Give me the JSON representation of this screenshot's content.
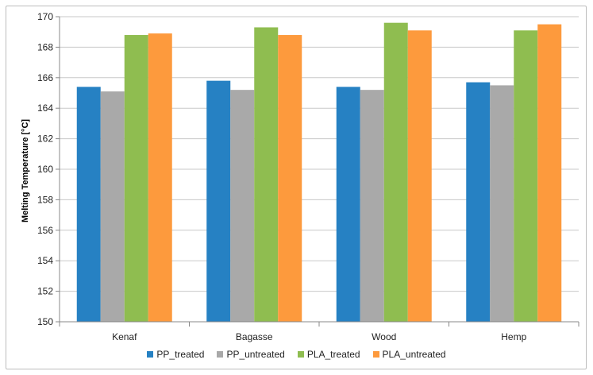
{
  "chart_data": {
    "type": "bar",
    "title": "",
    "xlabel": "",
    "ylabel": "Melting Temperature [°C]",
    "ylim": [
      150,
      170
    ],
    "yticks": [
      150,
      152,
      154,
      156,
      158,
      160,
      162,
      164,
      166,
      168,
      170
    ],
    "grid": true,
    "legend": "bottom",
    "categories": [
      "Kenaf",
      "Bagasse",
      "Wood",
      "Hemp"
    ],
    "series": [
      {
        "name": "PP_treated",
        "color": "#2681c3",
        "values": [
          165.4,
          165.8,
          165.4,
          165.7
        ]
      },
      {
        "name": "PP_untreated",
        "color": "#a9a9a9",
        "values": [
          165.1,
          165.2,
          165.2,
          165.5
        ]
      },
      {
        "name": "PLA_treated",
        "color": "#8fbd50",
        "values": [
          168.8,
          169.3,
          169.6,
          169.1
        ]
      },
      {
        "name": "PLA_untreated",
        "color": "#fd9a3d",
        "values": [
          168.9,
          168.8,
          169.1,
          169.5
        ]
      }
    ]
  }
}
